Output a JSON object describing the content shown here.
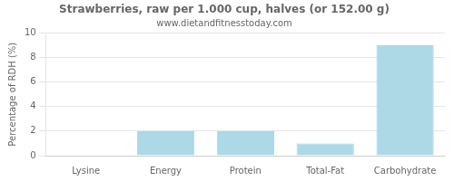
{
  "chart_data": {
    "type": "bar",
    "title": "Strawberries, raw per 1.000 cup, halves (or 152.00 g)",
    "subtitle": "www.dietandfitnesstoday.com",
    "categories": [
      "Lysine",
      "Energy",
      "Protein",
      "Total-Fat",
      "Carbohydrate"
    ],
    "values": [
      0.0,
      2.0,
      2.0,
      1.0,
      9.0
    ],
    "color": "#add8e6",
    "ylabel": "Percentage of RDH (%)",
    "ylim": [
      0,
      10
    ],
    "yticks": [
      0,
      2,
      4,
      6,
      8,
      10
    ],
    "grid": true
  }
}
